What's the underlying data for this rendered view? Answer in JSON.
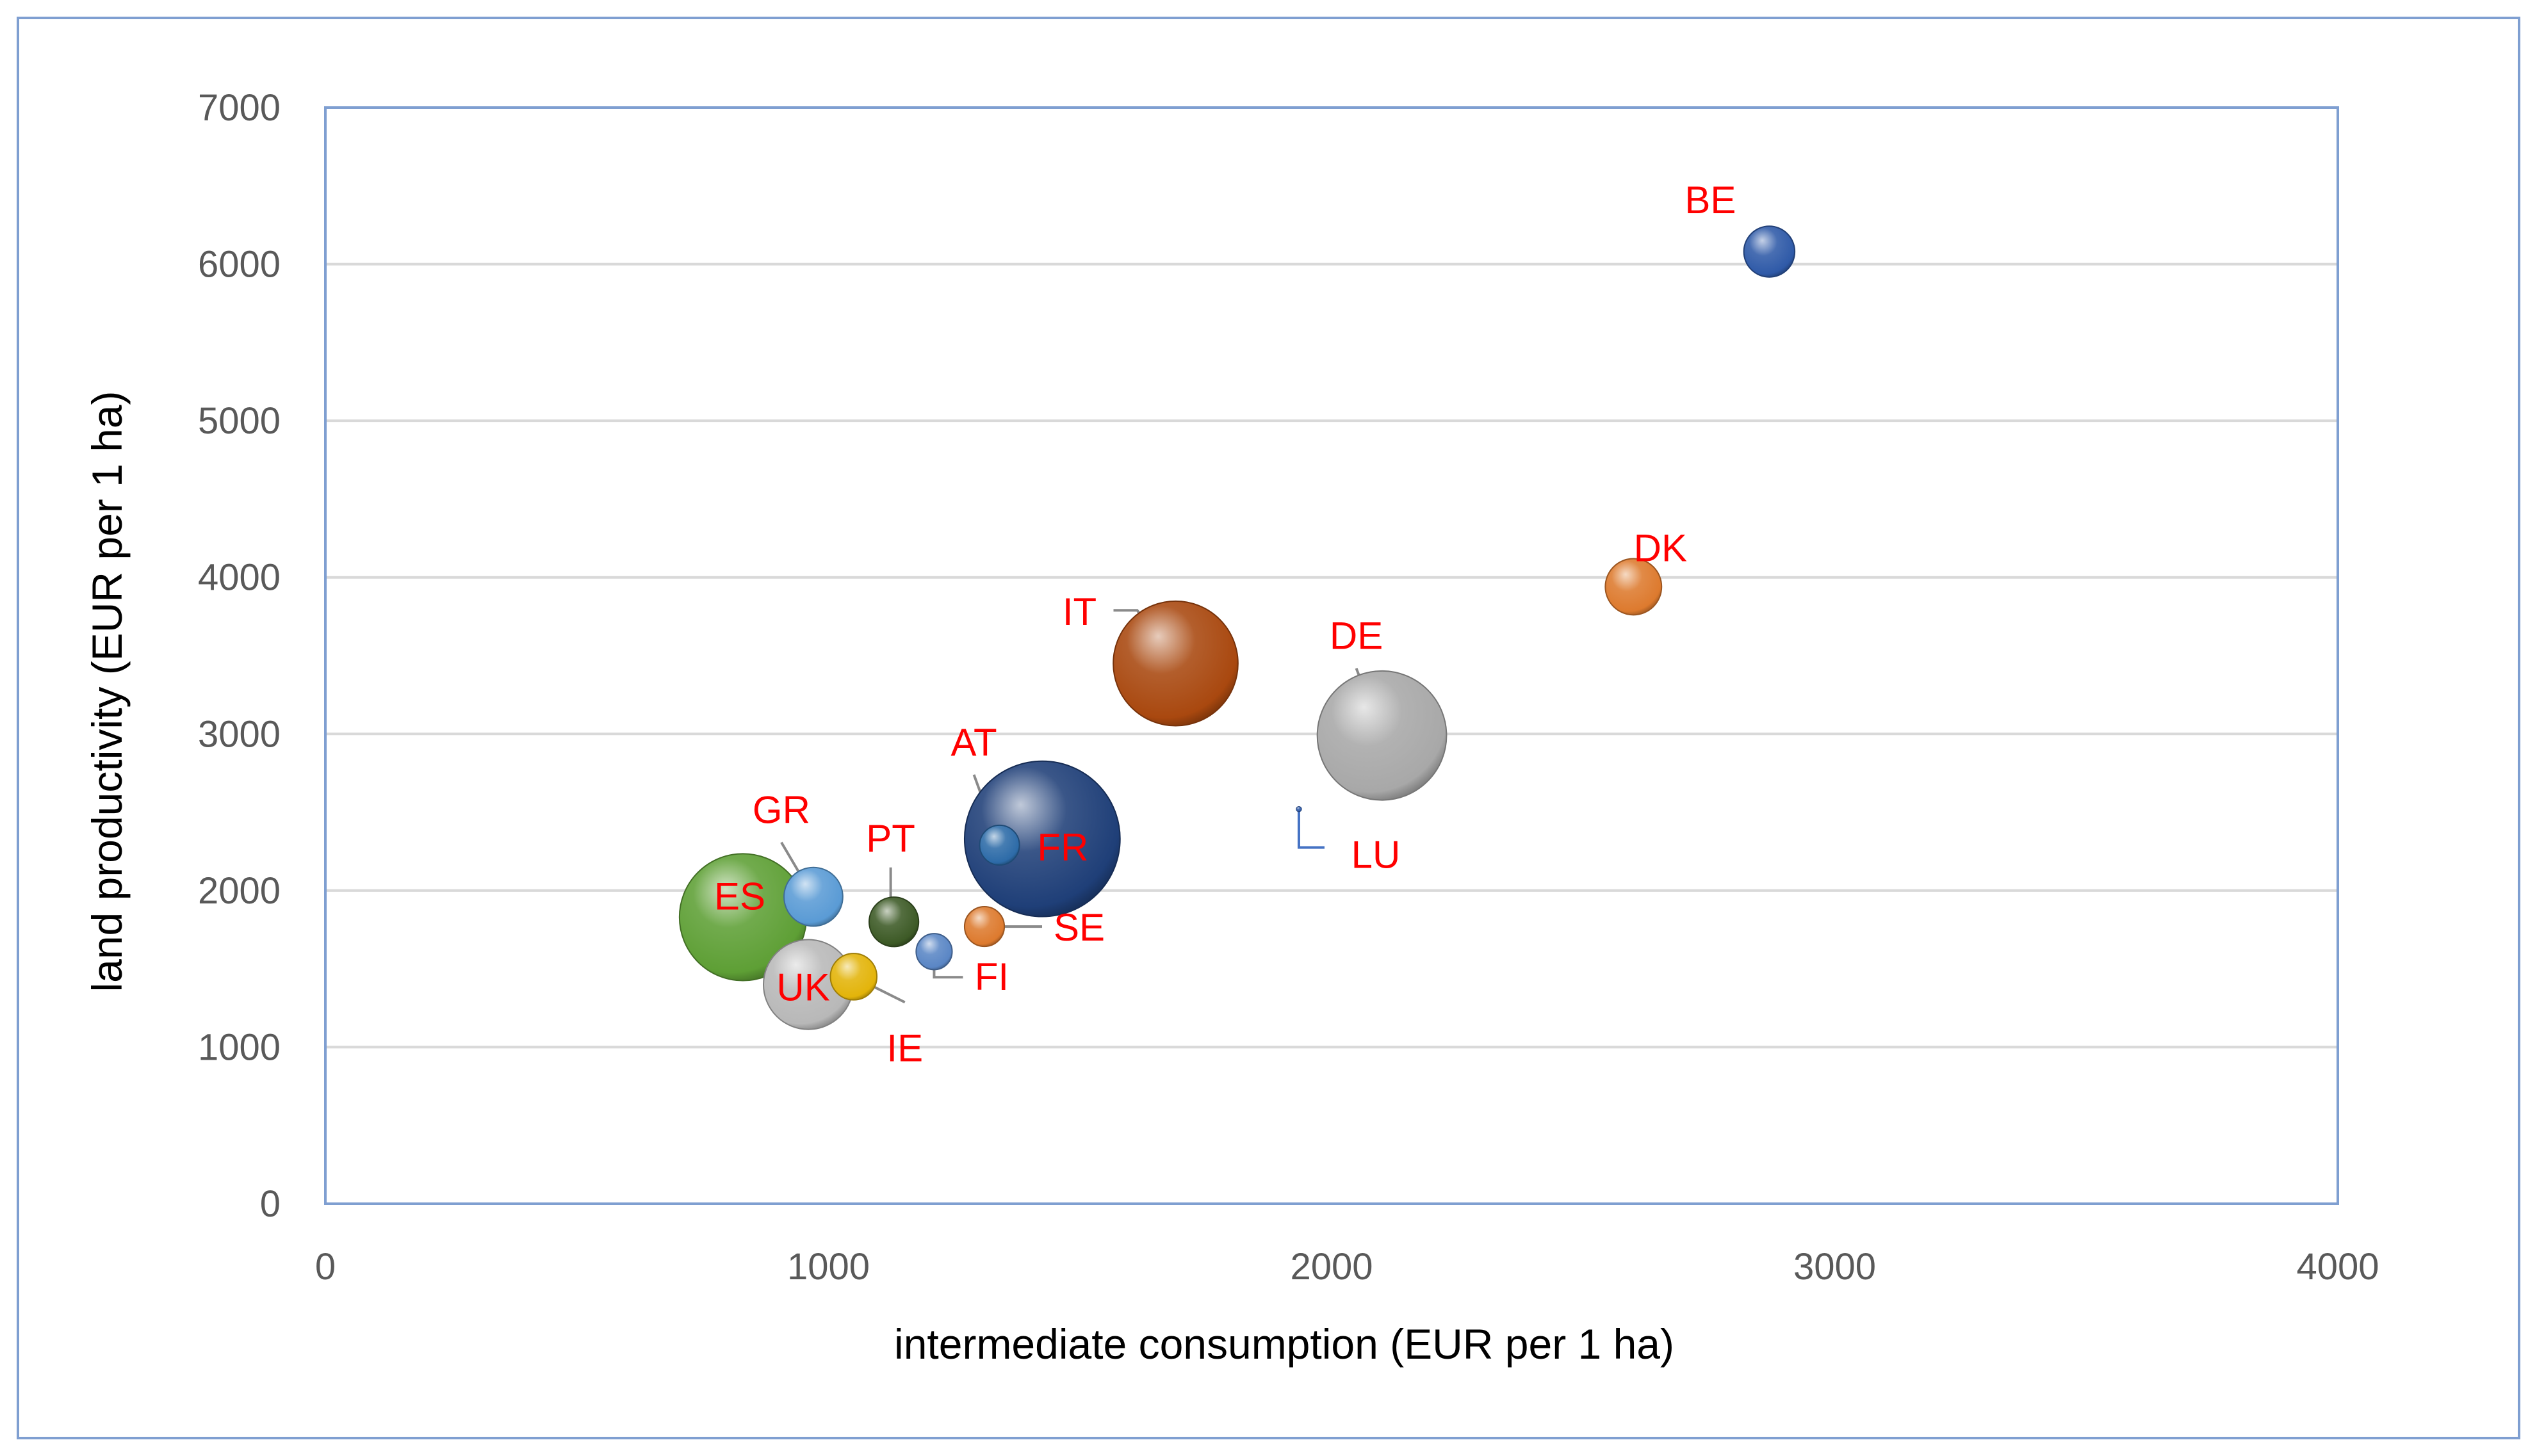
{
  "chart_data": {
    "type": "bubble",
    "title": "",
    "xlabel": "intermediate consumption (EUR per 1 ha)",
    "ylabel": "land productivity (EUR per 1 ha)",
    "xlim": [
      0,
      4000
    ],
    "ylim": [
      0,
      7000
    ],
    "x_ticks": [
      0,
      1000,
      2000,
      3000,
      4000
    ],
    "y_ticks": [
      0,
      1000,
      2000,
      3000,
      4000,
      5000,
      6000,
      7000
    ],
    "grid": "horizontal",
    "legend": "none",
    "bubble_size_legend": "none",
    "series": [
      {
        "label": "BE",
        "x": 2870,
        "y": 6080,
        "size": 0.9,
        "color": "#2f5aa8"
      },
      {
        "label": "DK",
        "x": 2600,
        "y": 3940,
        "size": 1.1,
        "color": "#dd7a2e"
      },
      {
        "label": "IT",
        "x": 1690,
        "y": 3450,
        "size": 5.4,
        "color": "#a9480f"
      },
      {
        "label": "DE",
        "x": 2100,
        "y": 2990,
        "size": 5.8,
        "color": "#a8a8a8"
      },
      {
        "label": "LU",
        "x": 1935,
        "y": 2520,
        "size": 0.01,
        "color": "#2f5aa8"
      },
      {
        "label": "AT",
        "x": 1340,
        "y": 2290,
        "size": 0.55,
        "color": "#2d6ba8"
      },
      {
        "label": "FR",
        "x": 1425,
        "y": 2330,
        "size": 8.4,
        "color": "#1f3f78"
      },
      {
        "label": "GR",
        "x": 970,
        "y": 1960,
        "size": 1.2,
        "color": "#5a9bd5"
      },
      {
        "label": "ES",
        "x": 830,
        "y": 1830,
        "size": 5.6,
        "color": "#5e9f35"
      },
      {
        "label": "PT",
        "x": 1130,
        "y": 1800,
        "size": 0.85,
        "color": "#3d5a26"
      },
      {
        "label": "SE",
        "x": 1310,
        "y": 1770,
        "size": 0.55,
        "color": "#dd7a2e"
      },
      {
        "label": "FI",
        "x": 1210,
        "y": 1610,
        "size": 0.45,
        "color": "#5a86c5"
      },
      {
        "label": "IE",
        "x": 1050,
        "y": 1450,
        "size": 0.75,
        "color": "#e3b40a"
      },
      {
        "label": "UK",
        "x": 960,
        "y": 1400,
        "size": 2.8,
        "color": "#b8b8b8"
      }
    ],
    "colors": {
      "axis_text": "#595959",
      "grid": "#d9d9d9",
      "plot_border": "#7f9fd1",
      "frame_border": "#7f9fd1",
      "label_text": "#ff0000",
      "leader_line": "#8a8a8a",
      "lu_leader": "#4472c4"
    }
  }
}
